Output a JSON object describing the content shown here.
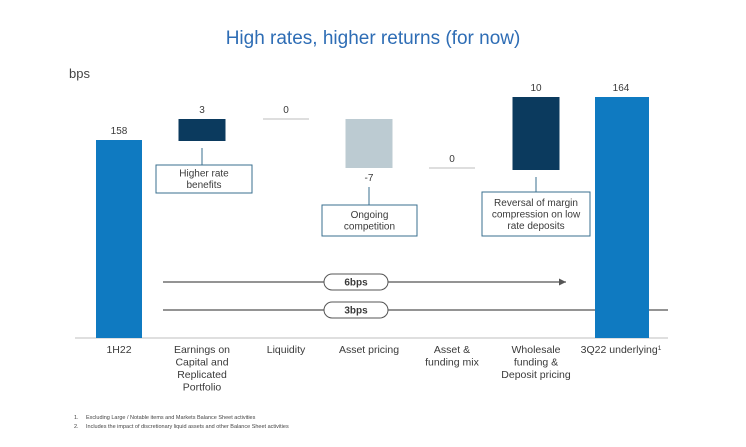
{
  "title": "High rates, higher returns (for now)",
  "unit": "bps",
  "colors": {
    "total_bar": "#0f7ac1",
    "positive_bar": "#0b3a5e",
    "negative_bar": "#bccbd2",
    "zero_line": "#bdbdbd",
    "box_border": "#3a6f8f",
    "title_color": "#2e6db5"
  },
  "chart_data": {
    "type": "bar",
    "subtype": "waterfall",
    "unit": "bps",
    "categories": [
      "1H22",
      "Earnings on Capital and Replicated Portfolio",
      "Liquidity",
      "Asset pricing",
      "Asset & funding mix",
      "Wholesale funding & Deposit pricing",
      "3Q22 underlying"
    ],
    "category_lines": [
      [
        "1H22"
      ],
      [
        "Earnings on",
        "Capital and",
        "Replicated",
        "Portfolio"
      ],
      [
        "Liquidity"
      ],
      [
        "Asset pricing"
      ],
      [
        "Asset &",
        "funding mix"
      ],
      [
        "Wholesale",
        "funding &",
        "Deposit pricing"
      ],
      [
        "3Q22 underlying"
      ]
    ],
    "last_category_superscript": "1",
    "values": [
      158,
      3,
      0,
      -7,
      0,
      10,
      164
    ],
    "value_labels": [
      "158",
      "3",
      "0",
      "-7",
      "0",
      "10",
      "164"
    ],
    "kinds": [
      "total",
      "delta",
      "delta",
      "delta",
      "delta",
      "delta",
      "total"
    ],
    "annotations": [
      {
        "category_index": 1,
        "lines": [
          "Higher rate",
          "benefits"
        ]
      },
      {
        "category_index": 3,
        "lines": [
          "Ongoing",
          "competition"
        ]
      },
      {
        "category_index": 5,
        "lines": [
          "Reversal of margin",
          "compression on low",
          "rate deposits"
        ]
      }
    ],
    "brackets": [
      {
        "label": "6bps",
        "from_category": 1,
        "to_category": 5,
        "arrow": true
      },
      {
        "label": "3bps",
        "from_category": 1,
        "to_category": 6,
        "arrow": false
      }
    ]
  },
  "footnotes": [
    {
      "num": "1.",
      "text": "Excluding Large / Notable items and Markets Balance Sheet activities"
    },
    {
      "num": "2.",
      "text": "Includes the impact of discretionary liquid assets and other Balance Sheet activities"
    }
  ]
}
